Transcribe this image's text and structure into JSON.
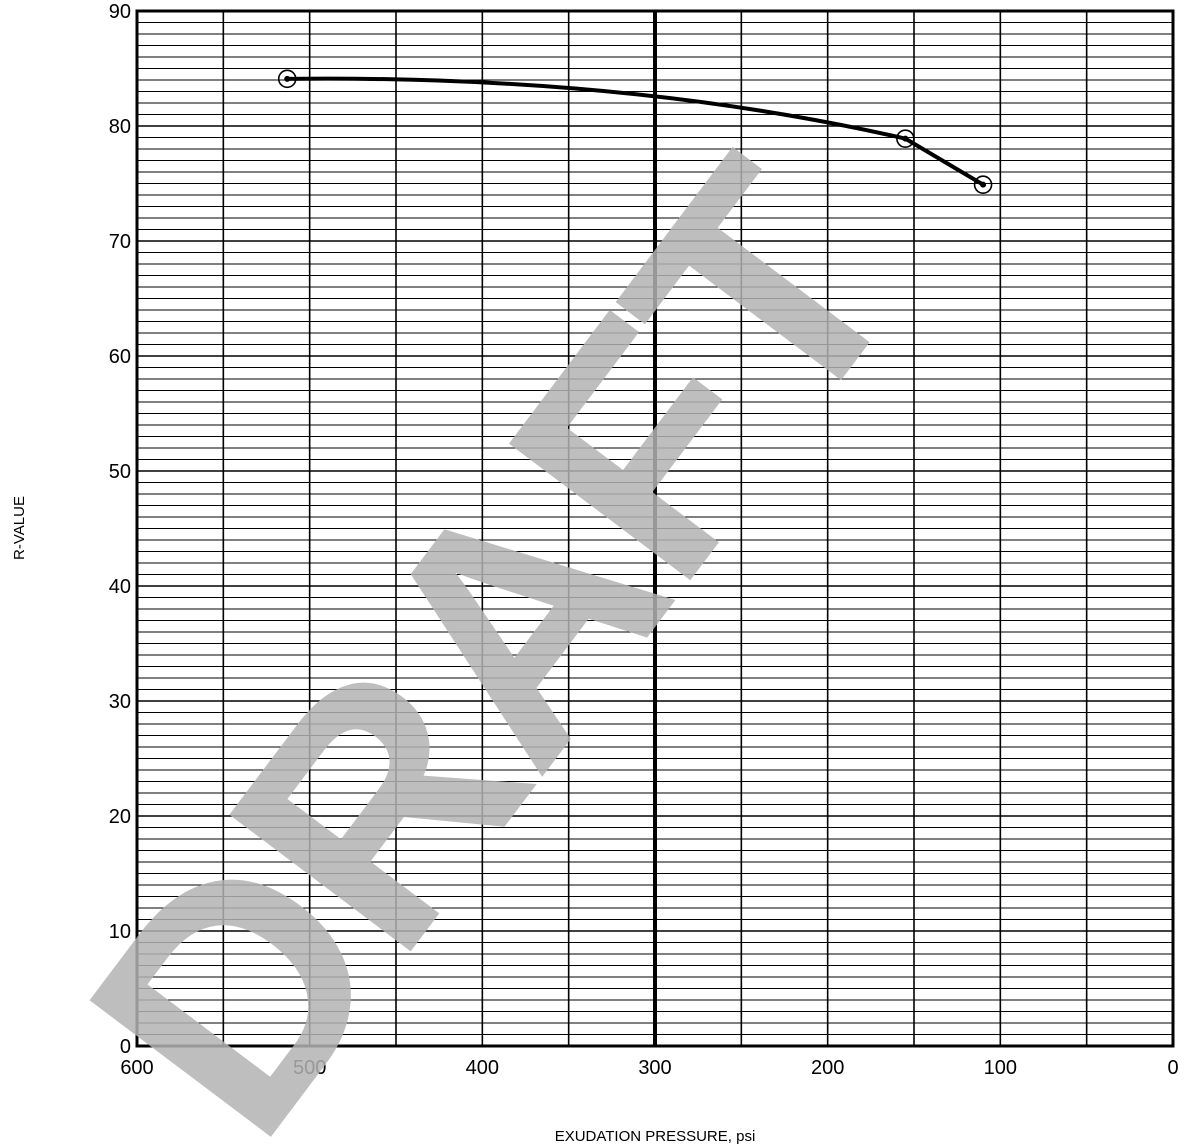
{
  "chart_data": {
    "type": "line",
    "title": "",
    "xlabel": "EXUDATION PRESSURE, psi",
    "ylabel": "R-VALUE",
    "xlim": [
      600,
      0
    ],
    "x_reversed": true,
    "ylim": [
      0,
      90
    ],
    "x_ticks": [
      600,
      500,
      400,
      300,
      200,
      100,
      0
    ],
    "y_ticks": [
      0,
      10,
      20,
      30,
      40,
      50,
      60,
      70,
      80,
      90
    ],
    "grid": "on",
    "marked_x": 300,
    "series": [
      {
        "color": "#000000",
        "marker": "circled-dot",
        "points": [
          {
            "x": 513,
            "y": 84.1
          },
          {
            "x": 155,
            "y": 78.9
          },
          {
            "x": 110,
            "y": 74.9
          }
        ]
      }
    ],
    "watermark": "DRAFT"
  }
}
